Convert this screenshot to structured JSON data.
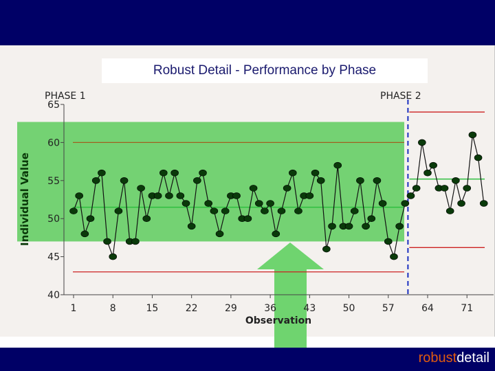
{
  "slide": {
    "brand_part1": "robust",
    "brand_part2": "detail",
    "colors": {
      "header": "#000066",
      "accent": "#f0a020",
      "highlight": "#5dcc5d",
      "arrow": "#6fd46f",
      "limit": "#cc2020",
      "points": "#0a3a0a"
    }
  },
  "chart_data": {
    "type": "line",
    "title": "Robust Detail - Performance by Phase",
    "xlabel": "Observation",
    "ylabel": "Individual Value",
    "xlim": [
      1,
      76
    ],
    "ylim": [
      40,
      65
    ],
    "x_ticks": [
      1,
      8,
      15,
      22,
      29,
      36,
      43,
      50,
      57,
      64,
      71
    ],
    "x_tick_labels": [
      "1",
      "8",
      "15",
      "22",
      "29",
      "36",
      "43",
      "50",
      "57",
      "64",
      "71"
    ],
    "y_ticks": [
      40,
      45,
      50,
      55,
      60,
      65
    ],
    "y_tick_labels": [
      "40",
      "45",
      "50",
      "55",
      "60",
      "65"
    ],
    "phase_labels": [
      "PHASE 1",
      "PHASE 2"
    ],
    "phase_break": 60.5,
    "phases": [
      {
        "x_start": 1,
        "x_end": 60,
        "center": 51.5,
        "ucl": 60.0,
        "lcl": 43.0
      },
      {
        "x_start": 61,
        "x_end": 76,
        "center": 55.2,
        "ucl": 64.0,
        "lcl": 46.2
      }
    ],
    "highlight_band": {
      "y_low": 47,
      "y_high": 62.7
    },
    "series": [
      {
        "values": [
          51,
          53,
          48,
          50,
          55,
          56,
          47,
          45,
          51,
          55,
          47,
          47,
          54,
          50,
          53,
          53,
          56,
          53,
          56,
          53,
          52,
          49,
          55,
          56,
          52,
          51,
          48,
          51,
          53,
          53,
          50,
          50,
          54,
          52,
          51,
          52,
          48,
          51,
          54,
          56,
          51,
          53,
          53,
          56,
          55,
          46,
          49,
          57,
          49,
          49,
          51,
          55,
          49,
          50,
          55,
          52,
          47,
          45,
          49,
          52,
          53,
          54,
          60,
          56,
          57,
          54,
          54,
          51,
          55,
          52,
          54,
          61,
          58,
          52
        ]
      }
    ]
  }
}
